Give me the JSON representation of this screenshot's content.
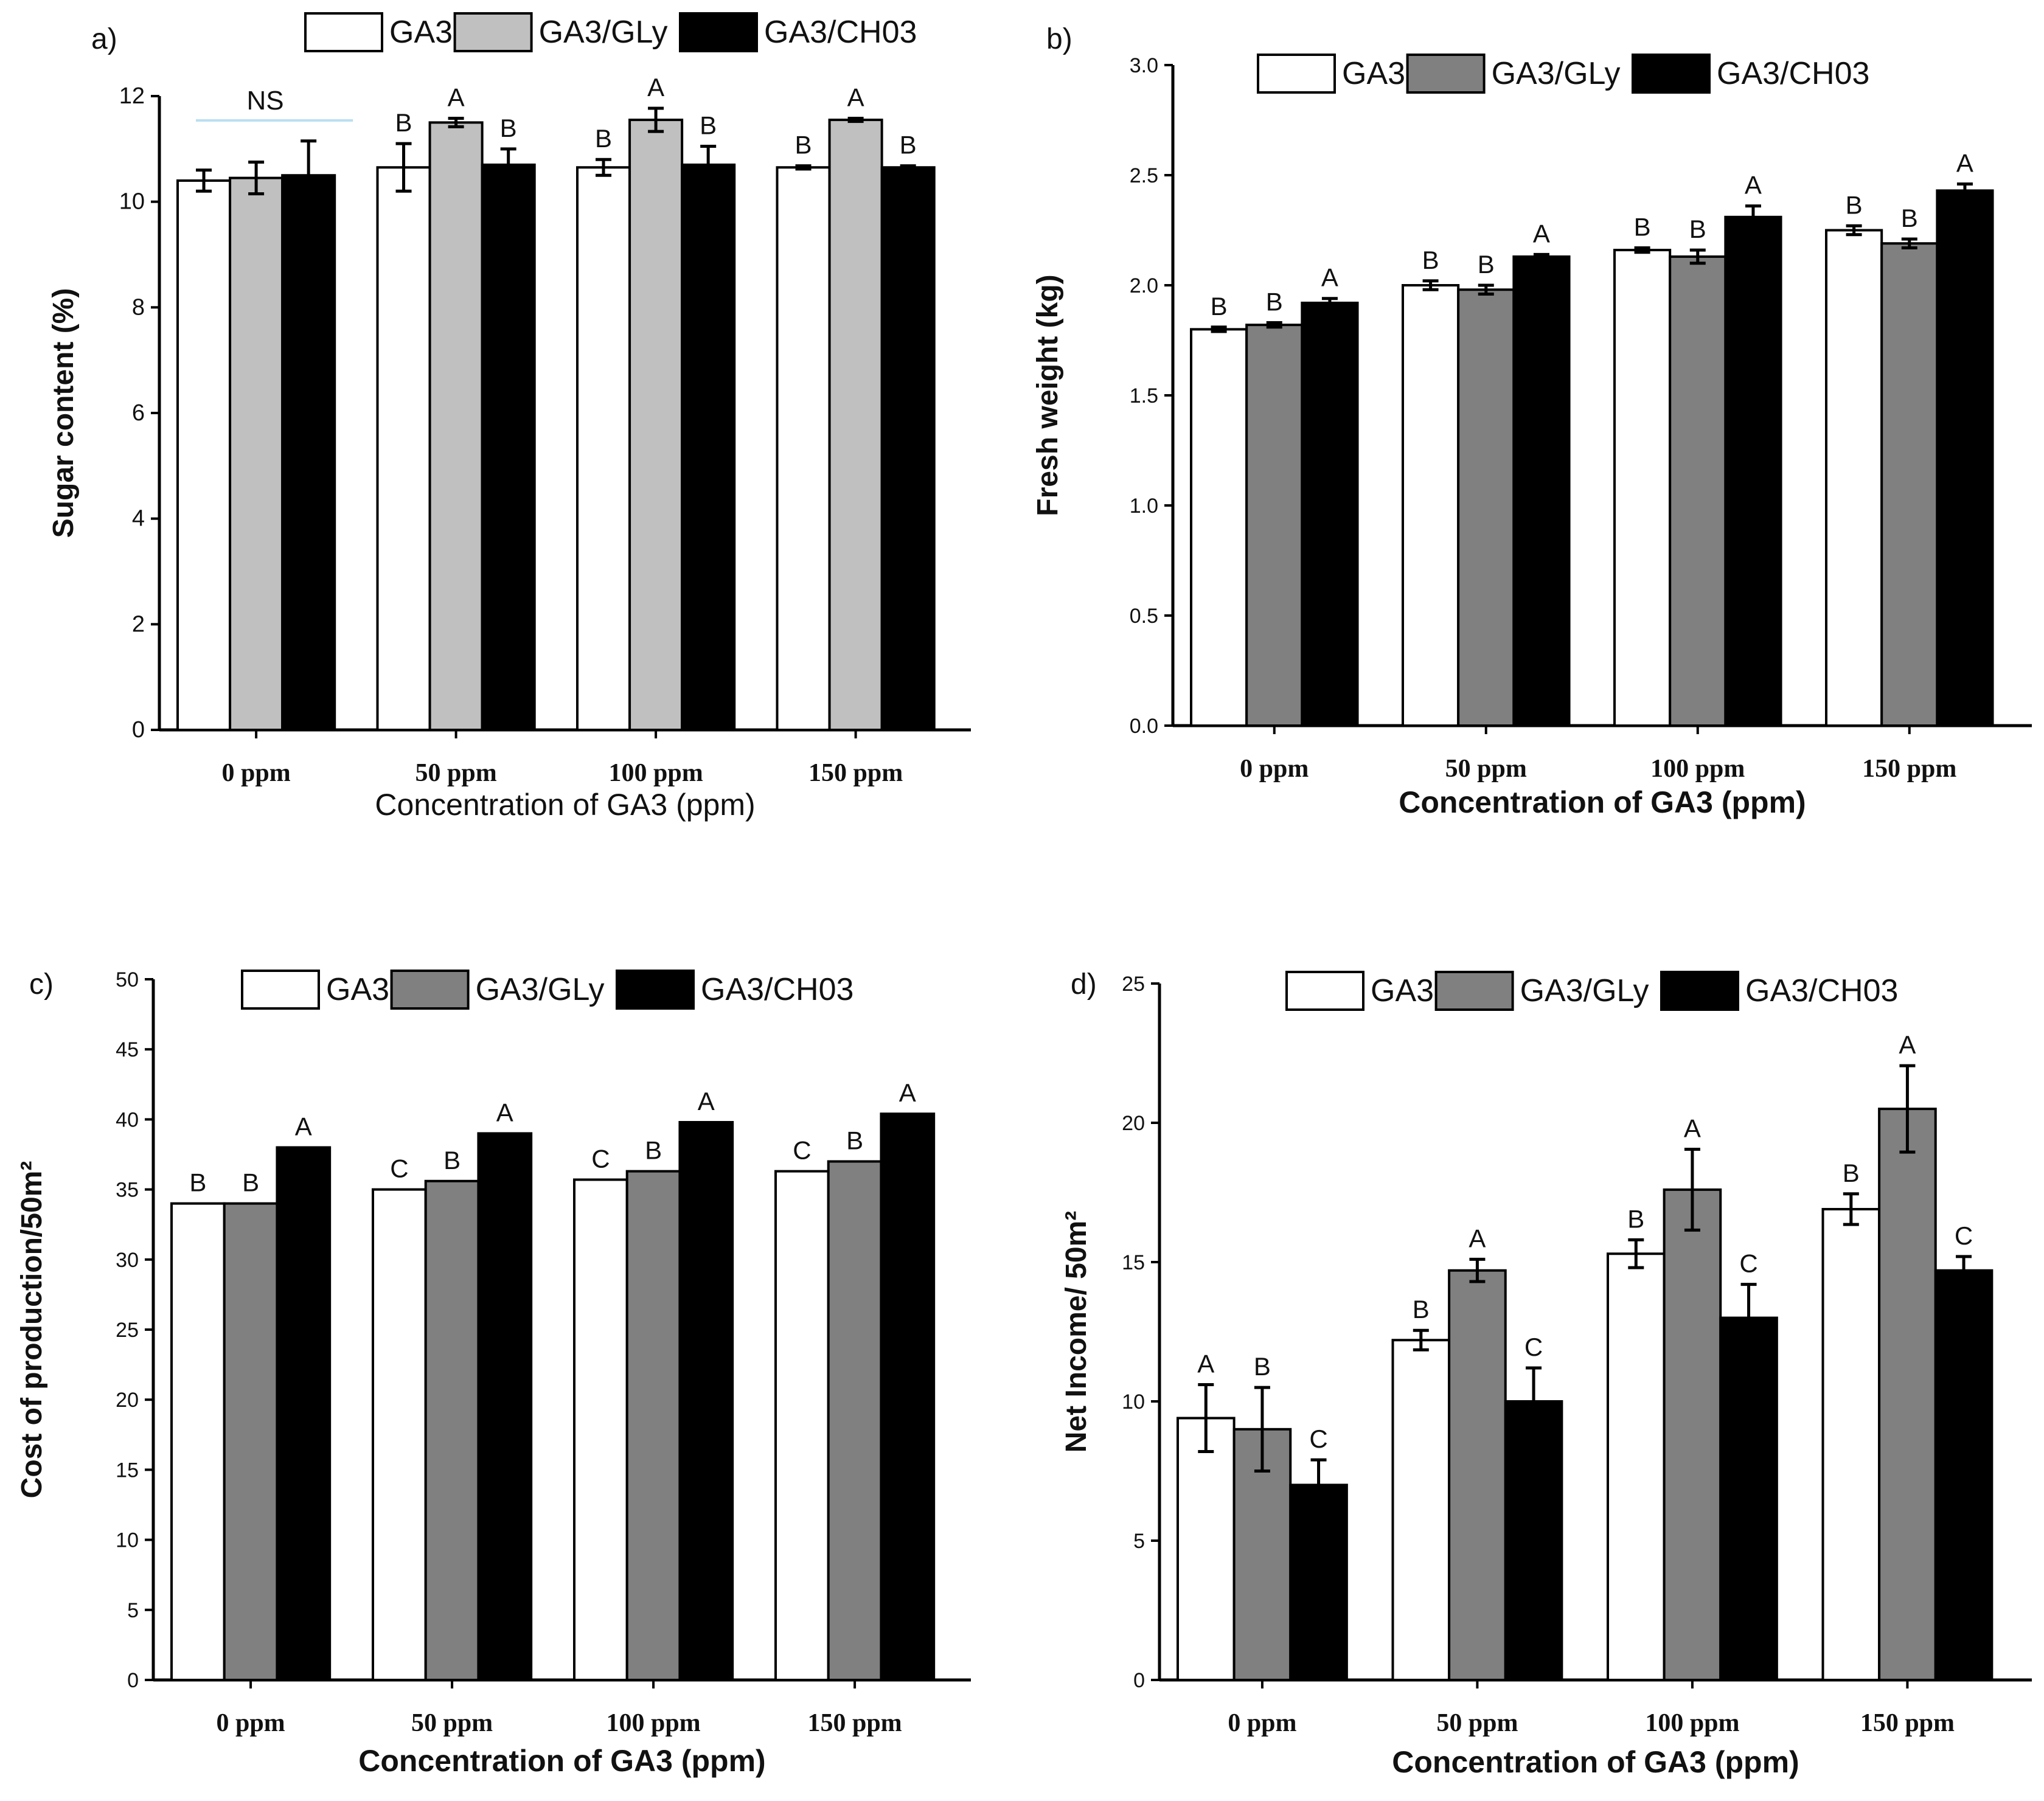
{
  "colors": {
    "GA3": "#ffffff",
    "GA3/GLy_light": "#c0c0c0",
    "GA3/GLy_dark": "#808080",
    "GA3/CH03": "#000000",
    "ns_line": "#b9dff0"
  },
  "chart_data": [
    {
      "panel": "a)",
      "type": "bar",
      "legend": [
        "GA3",
        "GA3/GLy",
        "GA3/CH03"
      ],
      "categories": [
        "0 ppm",
        "50 ppm",
        "100 ppm",
        "150 ppm"
      ],
      "xlabel": "Concentration of GA3 (ppm)",
      "ylabel": "Sugar content (%)",
      "ylim": [
        0,
        12
      ],
      "yticks": [
        "0",
        "2",
        "4",
        "6",
        "8",
        "10",
        "12"
      ],
      "ns_label": "NS",
      "series": [
        {
          "name": "GA3",
          "values": [
            10.4,
            10.65,
            10.65,
            10.65
          ],
          "errors": [
            0.2,
            0.45,
            0.15,
            0.03
          ],
          "letters": [
            "",
            "B",
            "B",
            "B"
          ]
        },
        {
          "name": "GA3/GLy",
          "values": [
            10.45,
            11.5,
            11.55,
            11.55
          ],
          "errors": [
            0.3,
            0.08,
            0.22,
            0.03
          ],
          "letters": [
            "",
            "A",
            "A",
            "A"
          ]
        },
        {
          "name": "GA3/CH03",
          "values": [
            10.5,
            10.7,
            10.7,
            10.65
          ],
          "errors": [
            0.65,
            0.3,
            0.35,
            0.03
          ],
          "letters": [
            "",
            "B",
            "B",
            "B"
          ]
        }
      ]
    },
    {
      "panel": "b)",
      "type": "bar",
      "legend": [
        "GA3",
        "GA3/GLy",
        "GA3/CH03"
      ],
      "categories": [
        "0 ppm",
        "50 ppm",
        "100 ppm",
        "150 ppm"
      ],
      "xlabel": "Concentration of GA3 (ppm)",
      "ylabel": "Fresh weight (kg)",
      "ylim": [
        0,
        3
      ],
      "yticks": [
        "0.0",
        "0.5",
        "1.0",
        "1.5",
        "2.0",
        "2.5",
        "3.0"
      ],
      "series": [
        {
          "name": "GA3",
          "values": [
            1.8,
            2.0,
            2.16,
            2.25
          ],
          "errors": [
            0.01,
            0.02,
            0.01,
            0.02
          ],
          "letters": [
            "B",
            "B",
            "B",
            "B"
          ]
        },
        {
          "name": "GA3/GLy",
          "values": [
            1.82,
            1.98,
            2.13,
            2.19
          ],
          "errors": [
            0.01,
            0.02,
            0.03,
            0.02
          ],
          "letters": [
            "B",
            "B",
            "B",
            "B"
          ]
        },
        {
          "name": "GA3/CH03",
          "values": [
            1.92,
            2.13,
            2.31,
            2.43
          ],
          "errors": [
            0.02,
            0.01,
            0.05,
            0.03
          ],
          "letters": [
            "A",
            "A",
            "A",
            "A"
          ]
        }
      ]
    },
    {
      "panel": "c)",
      "type": "bar",
      "legend": [
        "GA3",
        "GA3/GLy",
        "GA3/CH03"
      ],
      "categories": [
        "0 ppm",
        "50 ppm",
        "100 ppm",
        "150 ppm"
      ],
      "xlabel": "Concentration of GA3 (ppm)",
      "ylabel": "Cost of production/50m²",
      "ylim": [
        0,
        50
      ],
      "yticks": [
        "0",
        "5",
        "10",
        "15",
        "20",
        "25",
        "30",
        "35",
        "40",
        "45",
        "50"
      ],
      "series": [
        {
          "name": "GA3",
          "values": [
            34,
            35,
            35.7,
            36.3
          ],
          "errors": [
            0,
            0,
            0,
            0
          ],
          "letters": [
            "B",
            "C",
            "C",
            "C"
          ]
        },
        {
          "name": "GA3/GLy",
          "values": [
            34,
            35.6,
            36.3,
            37
          ],
          "errors": [
            0,
            0,
            0,
            0
          ],
          "letters": [
            "B",
            "B",
            "B",
            "B"
          ]
        },
        {
          "name": "GA3/CH03",
          "values": [
            38,
            39,
            39.8,
            40.4
          ],
          "errors": [
            0,
            0,
            0,
            0
          ],
          "letters": [
            "A",
            "A",
            "A",
            "A"
          ]
        }
      ]
    },
    {
      "panel": "d)",
      "type": "bar",
      "legend": [
        "GA3",
        "GA3/GLy",
        "GA3/CH03"
      ],
      "categories": [
        "0 ppm",
        "50 ppm",
        "100 ppm",
        "150 ppm"
      ],
      "xlabel": "Concentration of GA3 (ppm)",
      "ylabel": "Net Income/ 50m²",
      "ylim": [
        0,
        25
      ],
      "yticks": [
        "0",
        "5",
        "10",
        "15",
        "20",
        "25"
      ],
      "series": [
        {
          "name": "GA3",
          "values": [
            9.4,
            12.2,
            15.3,
            16.9
          ],
          "errors": [
            1.2,
            0.35,
            0.5,
            0.55
          ],
          "letters": [
            "A",
            "B",
            "B",
            "B"
          ]
        },
        {
          "name": "GA3/GLy",
          "values": [
            9.0,
            14.7,
            17.6,
            20.5
          ],
          "errors": [
            1.5,
            0.4,
            1.45,
            1.55
          ],
          "letters": [
            "B",
            "A",
            "A",
            "A"
          ]
        },
        {
          "name": "GA3/CH03",
          "values": [
            7.0,
            10.0,
            13.0,
            14.7
          ],
          "errors": [
            0.9,
            1.2,
            1.2,
            0.5
          ],
          "letters": [
            "C",
            "C",
            "C",
            "C"
          ]
        }
      ]
    }
  ]
}
